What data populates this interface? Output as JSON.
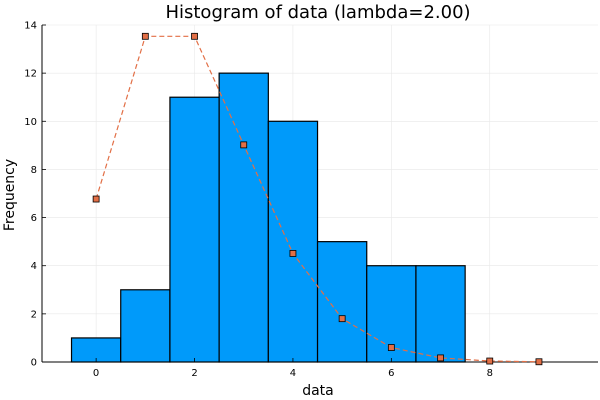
{
  "chart_data": {
    "type": "bar",
    "title": "Histogram of data (lambda=2.00)",
    "xlabel": "data",
    "ylabel": "Frequency",
    "xlim": [
      -1.1,
      10.2
    ],
    "ylim": [
      0,
      14
    ],
    "x_ticks": [
      0,
      2,
      4,
      6,
      8
    ],
    "y_ticks": [
      0,
      2,
      4,
      6,
      8,
      10,
      12,
      14
    ],
    "grid": true,
    "legend": "none",
    "colors": {
      "bars": "#009AFA",
      "bar_edge": "#000000",
      "line": "#E26F46",
      "marker_edge": "#000000",
      "grid": "#e8e8e8",
      "axis": "#000000"
    },
    "bins": [
      {
        "x0": -0.5,
        "x1": 0.5,
        "count": 1
      },
      {
        "x0": 0.5,
        "x1": 1.5,
        "count": 3
      },
      {
        "x0": 1.5,
        "x1": 2.5,
        "count": 11
      },
      {
        "x0": 2.5,
        "x1": 3.5,
        "count": 12
      },
      {
        "x0": 3.5,
        "x1": 4.5,
        "count": 10
      },
      {
        "x0": 4.5,
        "x1": 5.5,
        "count": 5
      },
      {
        "x0": 5.5,
        "x1": 6.5,
        "count": 4
      },
      {
        "x0": 6.5,
        "x1": 7.5,
        "count": 4
      }
    ],
    "series": [
      {
        "type": "line",
        "style": "dashed",
        "marker": "square",
        "x": [
          0,
          1,
          2,
          3,
          4,
          5,
          6,
          7,
          8,
          9
        ],
        "y": [
          6.77,
          13.53,
          13.53,
          9.02,
          4.51,
          1.8,
          0.6,
          0.17,
          0.04,
          0.01
        ]
      }
    ]
  }
}
